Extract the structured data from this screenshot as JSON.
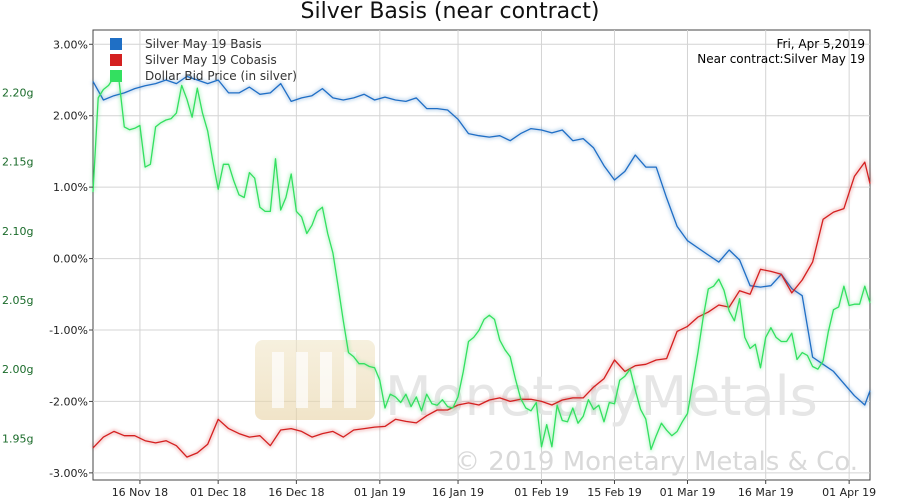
{
  "chart_data": {
    "type": "line",
    "title": "Silver Basis (near contract)",
    "info_lines": [
      "Fri, Apr 5,2019",
      "Near contract:Silver May 19"
    ],
    "watermark_logo": "MonetaryMetals",
    "watermark_copyright": "© 2019 Monetary Metals & Co.",
    "x_tick_labels": [
      "16 Nov 18",
      "01 Dec 18",
      "16 Dec 18",
      "01 Jan 19",
      "16 Jan 19",
      "01 Feb 19",
      "15 Feb 19",
      "01 Mar 19",
      "16 Mar 19",
      "01 Apr 19"
    ],
    "x_tick_positions": [
      5,
      20,
      35,
      51,
      66,
      82,
      96,
      110,
      125,
      141
    ],
    "xlim": [
      -4,
      145
    ],
    "y_left_ticks": [
      "3.00%",
      "2.00%",
      "1.00%",
      "0.00%",
      "-1.00%",
      "-2.00%",
      "-3.00%"
    ],
    "y_left_tick_values": [
      3,
      2,
      1,
      0,
      -1,
      -2,
      -3
    ],
    "ylim_left": [
      -3.1,
      3.2
    ],
    "y_right_ticks": [
      "2.20g",
      "2.15g",
      "2.10g",
      "2.05g",
      "2.00g",
      "1.95g"
    ],
    "y_right_tick_values": [
      2.2,
      2.15,
      2.1,
      2.05,
      2.0,
      1.95
    ],
    "ylim_right": [
      1.92,
      2.245
    ],
    "legend_position": "top-left",
    "grid": true,
    "series": [
      {
        "name": "Silver May 19 Basis",
        "color": "#1f6fc5",
        "axis": "left",
        "x": [
          -4,
          -2,
          0,
          2,
          4,
          6,
          8,
          10,
          12,
          14,
          16,
          18,
          20,
          22,
          24,
          26,
          28,
          30,
          32,
          34,
          36,
          38,
          40,
          42,
          44,
          46,
          48,
          50,
          52,
          54,
          56,
          58,
          60,
          62,
          64,
          66,
          68,
          70,
          72,
          74,
          76,
          78,
          80,
          82,
          84,
          86,
          88,
          90,
          92,
          94,
          96,
          98,
          100,
          102,
          104,
          106,
          108,
          110,
          112,
          114,
          116,
          118,
          120,
          122,
          124,
          126,
          128,
          130,
          132,
          134,
          136,
          138,
          140,
          142,
          144,
          145
        ],
        "y": [
          2.48,
          2.22,
          2.28,
          2.32,
          2.38,
          2.42,
          2.45,
          2.5,
          2.45,
          2.55,
          2.5,
          2.45,
          2.5,
          2.32,
          2.32,
          2.4,
          2.3,
          2.32,
          2.45,
          2.2,
          2.25,
          2.28,
          2.38,
          2.25,
          2.22,
          2.25,
          2.3,
          2.22,
          2.26,
          2.22,
          2.2,
          2.25,
          2.1,
          2.1,
          2.08,
          1.95,
          1.75,
          1.72,
          1.7,
          1.72,
          1.65,
          1.75,
          1.82,
          1.8,
          1.76,
          1.8,
          1.65,
          1.68,
          1.55,
          1.3,
          1.1,
          1.22,
          1.45,
          1.28,
          1.28,
          0.85,
          0.45,
          0.25,
          0.15,
          0.05,
          -0.05,
          0.12,
          -0.02,
          -0.38,
          -0.4,
          -0.38,
          -0.22,
          -0.42,
          -0.52,
          -1.38,
          -1.48,
          -1.58,
          -1.75,
          -1.92,
          -2.05,
          -1.85
        ]
      },
      {
        "name": "Silver May 19 Cobasis",
        "color": "#d42020",
        "axis": "left",
        "x": [
          -4,
          -2,
          0,
          2,
          4,
          6,
          8,
          10,
          12,
          14,
          16,
          18,
          20,
          22,
          24,
          26,
          28,
          30,
          32,
          34,
          36,
          38,
          40,
          42,
          44,
          46,
          48,
          50,
          52,
          54,
          56,
          58,
          60,
          62,
          64,
          66,
          68,
          70,
          72,
          74,
          76,
          78,
          80,
          82,
          84,
          86,
          88,
          90,
          92,
          94,
          96,
          98,
          100,
          102,
          104,
          106,
          108,
          110,
          112,
          114,
          116,
          118,
          120,
          122,
          124,
          126,
          128,
          130,
          132,
          134,
          136,
          138,
          140,
          142,
          144,
          145
        ],
        "y": [
          -2.65,
          -2.5,
          -2.42,
          -2.48,
          -2.48,
          -2.55,
          -2.58,
          -2.55,
          -2.62,
          -2.78,
          -2.72,
          -2.6,
          -2.25,
          -2.38,
          -2.45,
          -2.5,
          -2.48,
          -2.62,
          -2.4,
          -2.38,
          -2.42,
          -2.5,
          -2.45,
          -2.42,
          -2.5,
          -2.4,
          -2.38,
          -2.36,
          -2.35,
          -2.25,
          -2.28,
          -2.3,
          -2.2,
          -2.12,
          -2.12,
          -2.05,
          -2.02,
          -2.05,
          -1.98,
          -1.95,
          -2.0,
          -1.97,
          -1.97,
          -2.0,
          -2.05,
          -1.98,
          -1.95,
          -1.95,
          -1.8,
          -1.68,
          -1.42,
          -1.58,
          -1.5,
          -1.48,
          -1.42,
          -1.4,
          -1.02,
          -0.95,
          -0.82,
          -0.75,
          -0.65,
          -0.68,
          -0.45,
          -0.5,
          -0.15,
          -0.18,
          -0.22,
          -0.48,
          -0.3,
          -0.05,
          0.55,
          0.65,
          0.7,
          1.15,
          1.35,
          1.05
        ]
      },
      {
        "name": "Dollar Bid Price (in silver)",
        "color": "#33e060",
        "axis": "right",
        "x": [
          -4,
          -3,
          -2,
          -1,
          0,
          1,
          2,
          3,
          4,
          5,
          6,
          7,
          8,
          9,
          10,
          11,
          12,
          13,
          14,
          15,
          16,
          17,
          18,
          19,
          20,
          21,
          22,
          23,
          24,
          25,
          26,
          27,
          28,
          29,
          30,
          31,
          32,
          33,
          34,
          35,
          36,
          37,
          38,
          39,
          40,
          41,
          42,
          43,
          44,
          45,
          46,
          47,
          48,
          49,
          50,
          51,
          52,
          53,
          54,
          55,
          56,
          57,
          58,
          59,
          60,
          61,
          62,
          63,
          64,
          65,
          66,
          67,
          68,
          69,
          70,
          71,
          72,
          73,
          74,
          75,
          76,
          77,
          78,
          79,
          80,
          81,
          82,
          83,
          84,
          85,
          86,
          87,
          88,
          89,
          90,
          91,
          92,
          93,
          94,
          95,
          96,
          97,
          98,
          99,
          100,
          101,
          102,
          103,
          104,
          105,
          106,
          107,
          108,
          109,
          110,
          111,
          112,
          113,
          114,
          115,
          116,
          117,
          118,
          119,
          120,
          121,
          122,
          123,
          124,
          125,
          126,
          127,
          128,
          129,
          130,
          131,
          132,
          133,
          134,
          135,
          136,
          137,
          138,
          139,
          140,
          141,
          142,
          143,
          144,
          145
        ],
        "y": [
          2.128,
          2.196,
          2.202,
          2.205,
          2.211,
          2.208,
          2.175,
          2.173,
          2.174,
          2.176,
          2.146,
          2.148,
          2.175,
          2.178,
          2.18,
          2.181,
          2.185,
          2.205,
          2.195,
          2.182,
          2.203,
          2.185,
          2.172,
          2.15,
          2.13,
          2.148,
          2.148,
          2.136,
          2.126,
          2.124,
          2.142,
          2.138,
          2.117,
          2.114,
          2.114,
          2.152,
          2.115,
          2.124,
          2.141,
          2.114,
          2.11,
          2.098,
          2.104,
          2.114,
          2.117,
          2.098,
          2.084,
          2.06,
          2.035,
          2.012,
          2.009,
          2.004,
          2.004,
          2.002,
          2.001,
          1.992,
          1.972,
          1.982,
          1.98,
          1.976,
          1.982,
          1.973,
          1.98,
          1.97,
          1.982,
          1.975,
          1.974,
          1.978,
          1.973,
          1.972,
          1.98,
          1.998,
          2.02,
          2.023,
          2.028,
          2.036,
          2.039,
          2.036,
          2.021,
          2.014,
          2.009,
          1.993,
          1.979,
          1.972,
          1.97,
          1.976,
          1.944,
          1.96,
          1.944,
          1.974,
          1.963,
          1.962,
          1.972,
          1.961,
          1.966,
          1.978,
          1.971,
          1.974,
          1.962,
          1.976,
          1.975,
          1.992,
          1.995,
          2.0,
          1.985,
          1.971,
          1.964,
          1.942,
          1.952,
          1.961,
          1.956,
          1.952,
          1.955,
          1.962,
          1.968,
          1.99,
          2.012,
          2.037,
          2.058,
          2.06,
          2.065,
          2.057,
          2.042,
          2.035,
          2.051,
          2.023,
          2.015,
          2.018,
          2.001,
          2.023,
          2.03,
          2.023,
          2.02,
          2.02,
          2.026,
          2.007,
          2.012,
          2.01,
          2.002,
          2.0,
          2.006,
          2.027,
          2.043,
          2.045,
          2.06,
          2.046,
          2.047,
          2.047,
          2.06,
          2.048
        ]
      }
    ]
  }
}
